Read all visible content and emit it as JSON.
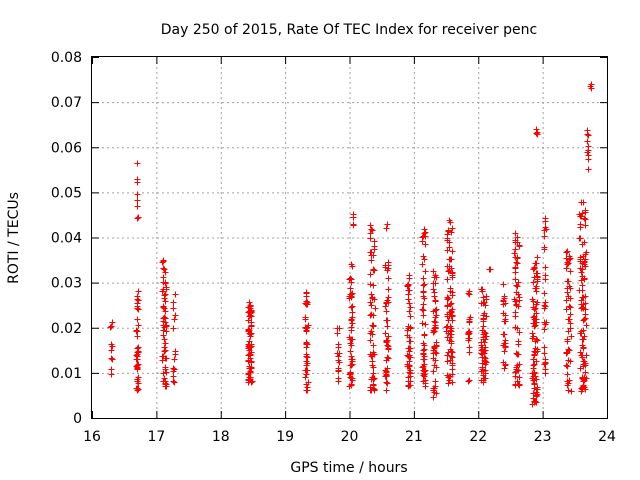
{
  "chart_data": {
    "type": "scatter",
    "title": "Day 250 of 2015, Rate Of TEC Index for receiver penc",
    "xlabel": "GPS time / hours",
    "ylabel": "ROTI / TECUs",
    "xlim": [
      16,
      24
    ],
    "ylim": [
      0,
      0.08
    ],
    "x_ticks": [
      "16",
      "17",
      "18",
      "19",
      "20",
      "21",
      "22",
      "23",
      "24"
    ],
    "y_ticks": [
      "0",
      "0.01",
      "0.02",
      "0.03",
      "0.04",
      "0.05",
      "0.06",
      "0.07",
      "0.08"
    ],
    "grid": true,
    "marker": "+",
    "color": "#ff0000",
    "clusters": [
      {
        "x": 16.3,
        "w": 0.03,
        "y_min": 0.009,
        "y_max": 0.022,
        "n": 10
      },
      {
        "x": 16.7,
        "w": 0.04,
        "y_min": 0.006,
        "y_max": 0.029,
        "n": 40
      },
      {
        "x": 16.7,
        "w": 0.02,
        "y_min": 0.043,
        "y_max": 0.057,
        "n": 10
      },
      {
        "x": 17.12,
        "w": 0.06,
        "y_min": 0.007,
        "y_max": 0.036,
        "n": 60
      },
      {
        "x": 17.27,
        "w": 0.03,
        "y_min": 0.007,
        "y_max": 0.029,
        "n": 15
      },
      {
        "x": 18.45,
        "w": 0.06,
        "y_min": 0.008,
        "y_max": 0.026,
        "n": 70
      },
      {
        "x": 19.33,
        "w": 0.04,
        "y_min": 0.006,
        "y_max": 0.028,
        "n": 40
      },
      {
        "x": 19.82,
        "w": 0.03,
        "y_min": 0.008,
        "y_max": 0.02,
        "n": 15
      },
      {
        "x": 20.02,
        "w": 0.05,
        "y_min": 0.007,
        "y_max": 0.035,
        "n": 50
      },
      {
        "x": 20.05,
        "w": 0.02,
        "y_min": 0.04,
        "y_max": 0.046,
        "n": 4
      },
      {
        "x": 20.35,
        "w": 0.08,
        "y_min": 0.006,
        "y_max": 0.043,
        "n": 60
      },
      {
        "x": 20.58,
        "w": 0.05,
        "y_min": 0.006,
        "y_max": 0.035,
        "n": 45
      },
      {
        "x": 20.58,
        "w": 0.02,
        "y_min": 0.042,
        "y_max": 0.043,
        "n": 3
      },
      {
        "x": 20.92,
        "w": 0.05,
        "y_min": 0.007,
        "y_max": 0.033,
        "n": 50
      },
      {
        "x": 21.15,
        "w": 0.05,
        "y_min": 0.007,
        "y_max": 0.042,
        "n": 55
      },
      {
        "x": 21.32,
        "w": 0.06,
        "y_min": 0.004,
        "y_max": 0.034,
        "n": 50
      },
      {
        "x": 21.55,
        "w": 0.1,
        "y_min": 0.007,
        "y_max": 0.044,
        "n": 90
      },
      {
        "x": 21.85,
        "w": 0.03,
        "y_min": 0.008,
        "y_max": 0.03,
        "n": 20
      },
      {
        "x": 22.08,
        "w": 0.08,
        "y_min": 0.008,
        "y_max": 0.029,
        "n": 60
      },
      {
        "x": 22.17,
        "w": 0.03,
        "y_min": 0.033,
        "y_max": 0.033,
        "n": 2
      },
      {
        "x": 22.4,
        "w": 0.04,
        "y_min": 0.011,
        "y_max": 0.03,
        "n": 25
      },
      {
        "x": 22.6,
        "w": 0.08,
        "y_min": 0.007,
        "y_max": 0.041,
        "n": 60
      },
      {
        "x": 22.88,
        "w": 0.08,
        "y_min": 0.003,
        "y_max": 0.036,
        "n": 80
      },
      {
        "x": 22.9,
        "w": 0.02,
        "y_min": 0.063,
        "y_max": 0.064,
        "n": 4
      },
      {
        "x": 23.03,
        "w": 0.03,
        "y_min": 0.01,
        "y_max": 0.045,
        "n": 30
      },
      {
        "x": 23.4,
        "w": 0.08,
        "y_min": 0.006,
        "y_max": 0.037,
        "n": 50
      },
      {
        "x": 23.62,
        "w": 0.1,
        "y_min": 0.006,
        "y_max": 0.048,
        "n": 100
      },
      {
        "x": 23.7,
        "w": 0.03,
        "y_min": 0.055,
        "y_max": 0.067,
        "n": 10
      },
      {
        "x": 23.75,
        "w": 0.02,
        "y_min": 0.073,
        "y_max": 0.074,
        "n": 3
      }
    ]
  }
}
